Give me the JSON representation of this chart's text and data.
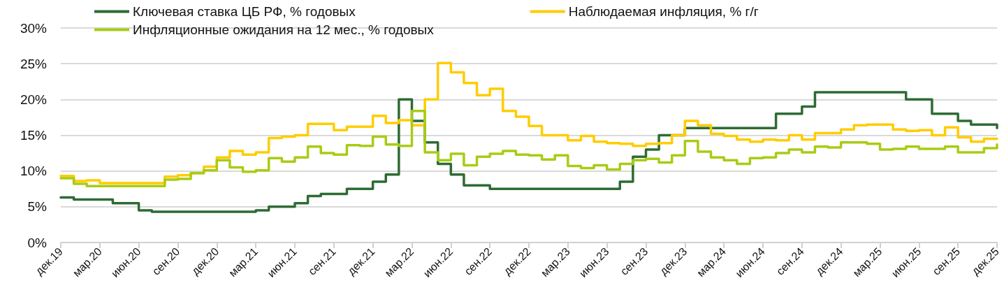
{
  "chart_data": {
    "type": "step",
    "line_style": "solid",
    "marker": "none",
    "legend": "top",
    "grid": "y",
    "categories": [
      "дек.19",
      null,
      null,
      "мар.20",
      null,
      null,
      "июн.20",
      null,
      null,
      "сен.20",
      null,
      null,
      "дек.20",
      null,
      null,
      "мар.21",
      null,
      null,
      "июн.21",
      null,
      null,
      "сен.21",
      null,
      null,
      "дек.21",
      null,
      null,
      "мар.22",
      null,
      null,
      "июн.22",
      null,
      null,
      "сен.22",
      null,
      null,
      "дек.22",
      null,
      null,
      "мар.23",
      null,
      null,
      "июн.23",
      null,
      null,
      "сен.23",
      null,
      null,
      "дек.23",
      null,
      null,
      "мар.24",
      null,
      null,
      "июн.24",
      null,
      null,
      "сен.24",
      null,
      null,
      "дек.24",
      null,
      null,
      "мар.25",
      null,
      null,
      "июн.25",
      null,
      null,
      "сен.25",
      null,
      null,
      "дек.25"
    ],
    "ylim": [
      0,
      30
    ],
    "yticks": [
      {
        "value": 0,
        "label": "0%"
      },
      {
        "value": 5,
        "label": "5%"
      },
      {
        "value": 10,
        "label": "10%"
      },
      {
        "value": 15,
        "label": "15%"
      },
      {
        "value": 20,
        "label": "20%"
      },
      {
        "value": 25,
        "label": "25%"
      },
      {
        "value": 30,
        "label": "30%"
      }
    ],
    "series": [
      {
        "name": "Ключевая ставка ЦБ РФ, % годовых",
        "color": "#2e6b34",
        "values": [
          6.3,
          6.0,
          6.0,
          6.0,
          5.5,
          5.5,
          4.5,
          4.3,
          4.3,
          4.3,
          4.3,
          4.3,
          4.3,
          4.3,
          4.3,
          4.5,
          5.0,
          5.0,
          5.5,
          6.5,
          6.8,
          6.8,
          7.5,
          7.5,
          8.5,
          9.5,
          20,
          17,
          14,
          11,
          9.5,
          8,
          8,
          7.5,
          7.5,
          7.5,
          7.5,
          7.5,
          7.5,
          7.5,
          7.5,
          7.5,
          7.5,
          8.5,
          12,
          13,
          15,
          15,
          16,
          16,
          16,
          16,
          16,
          16,
          16,
          18,
          18,
          19,
          21,
          21,
          21,
          21,
          21,
          21,
          21,
          20,
          20,
          18,
          18,
          17,
          16.5,
          16.5,
          16
        ]
      },
      {
        "name": "Наблюдаемая инфляция, % г/г",
        "color": "#ffcc00",
        "values": [
          9.3,
          8.6,
          8.7,
          8.3,
          8.3,
          8.3,
          8.3,
          8.3,
          9.2,
          9.4,
          9.7,
          10.6,
          11.9,
          12.8,
          12.3,
          12.6,
          14.6,
          14.8,
          15.0,
          16.6,
          16.6,
          15.7,
          16.2,
          16.2,
          17.7,
          16.7,
          17.1,
          16.4,
          20.0,
          25.1,
          23.8,
          22.3,
          20.6,
          21.5,
          18.4,
          17.6,
          16.3,
          15.0,
          15.0,
          14.3,
          14.9,
          14.1,
          13.9,
          13.8,
          13.5,
          13.8,
          13.9,
          15.0,
          17.0,
          16.4,
          15.2,
          14.9,
          14.4,
          14.1,
          14.4,
          14.3,
          15.0,
          14.4,
          15.3,
          15.3,
          15.8,
          16.4,
          16.5,
          16.5,
          15.8,
          15.6,
          15.7,
          15.0,
          16.1,
          14.7,
          14.1,
          14.5,
          14.5
        ]
      },
      {
        "name": "Инфляционные ожидания на 12 мес., % годовых",
        "color": "#a8cc14",
        "values": [
          9.0,
          8.2,
          7.9,
          7.9,
          7.9,
          7.9,
          7.9,
          7.9,
          8.8,
          8.9,
          9.7,
          10.1,
          11.5,
          10.5,
          9.9,
          10.1,
          11.8,
          11.3,
          11.9,
          13.4,
          12.5,
          12.3,
          13.6,
          13.5,
          14.8,
          13.7,
          13.5,
          18.4,
          12.6,
          11.5,
          12.4,
          10.8,
          12.0,
          12.4,
          12.8,
          12.3,
          12.2,
          11.6,
          12.2,
          10.7,
          10.4,
          10.8,
          10.2,
          11.0,
          11.5,
          11.7,
          11.2,
          12.2,
          14.2,
          12.7,
          11.9,
          11.5,
          11.0,
          11.8,
          11.9,
          12.5,
          13.0,
          12.6,
          13.4,
          13.3,
          14.0,
          14.0,
          13.8,
          13.0,
          13.1,
          13.4,
          13.1,
          13.1,
          13.4,
          12.6,
          12.6,
          13.2,
          13.7
        ]
      }
    ]
  }
}
